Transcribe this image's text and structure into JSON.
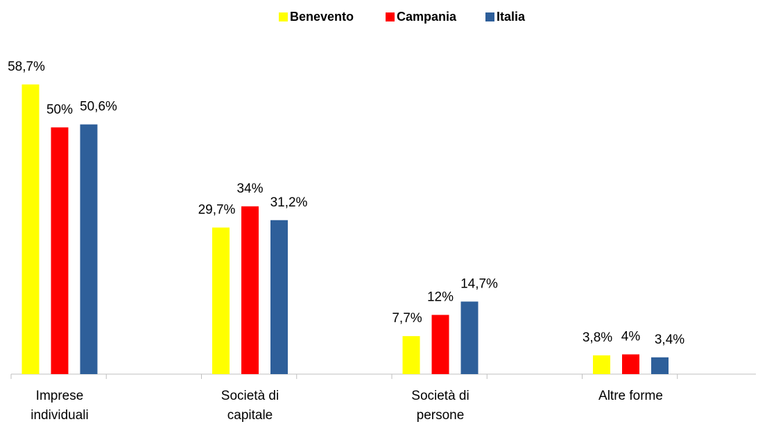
{
  "chart_data": {
    "type": "bar",
    "categories": [
      "Imprese individuali",
      "Società di capitale",
      "Società di persone",
      "Altre forme"
    ],
    "series": [
      {
        "name": "Benevento",
        "color": "#ffff00",
        "values": [
          58.7,
          29.7,
          7.7,
          3.8
        ],
        "value_labels": [
          "58,7%",
          "29,7%",
          "7,7%",
          "3,8%"
        ]
      },
      {
        "name": "Campania",
        "color": "#ff0000",
        "values": [
          50,
          34,
          12,
          4
        ],
        "value_labels": [
          "50%",
          "34%",
          "12%",
          "4%"
        ]
      },
      {
        "name": "Italia",
        "color": "#2e5f9a",
        "values": [
          50.6,
          31.2,
          14.7,
          3.4
        ],
        "value_labels": [
          "50,6%",
          "31,2%",
          "14,7%",
          "3,4%"
        ]
      }
    ],
    "ylim": [
      0,
      65
    ],
    "legend": "top"
  }
}
